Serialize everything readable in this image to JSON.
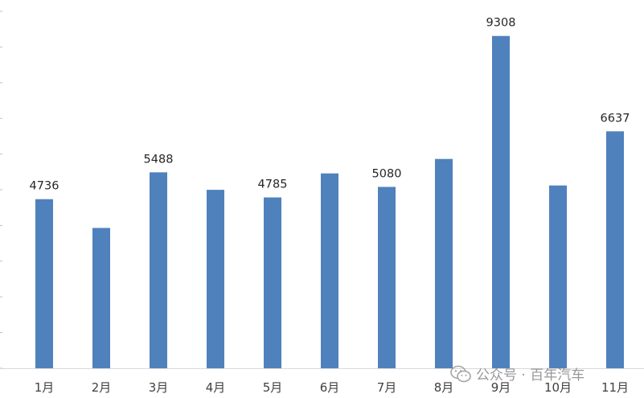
{
  "chart_data": {
    "type": "bar",
    "categories": [
      "1月",
      "2月",
      "3月",
      "4月",
      "5月",
      "6月",
      "7月",
      "8月",
      "9月",
      "10月",
      "11月"
    ],
    "values": [
      4736,
      3930,
      5488,
      4998,
      4785,
      5458,
      5080,
      5863,
      9308,
      5120,
      6637
    ],
    "data_labels": [
      "4736",
      "",
      "5488",
      "",
      "4785",
      "",
      "5080",
      "",
      "9308",
      "",
      "6637"
    ],
    "ylim": [
      0,
      10000
    ],
    "title": "",
    "xlabel": "",
    "ylabel": "",
    "grid": false,
    "bar_color": "#4f81bd"
  },
  "watermark": {
    "text": "公众号 · 百年汽车",
    "icon": "wechat-icon"
  }
}
